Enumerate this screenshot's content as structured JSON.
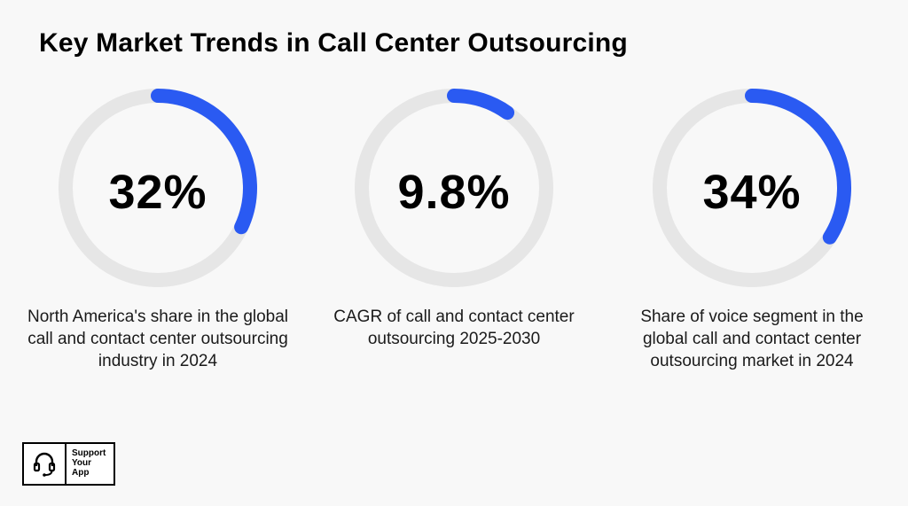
{
  "title": "Key Market Trends in Call Center Outsourcing",
  "colors": {
    "track": "#e6e6e6",
    "arc": "#2a5af2",
    "background": "#f8f8f8"
  },
  "chart_data": [
    {
      "type": "pie",
      "value": 32,
      "label": "32%",
      "caption": "North America's share in the global call and contact center outsourcing industry in 2024"
    },
    {
      "type": "pie",
      "value": 9.8,
      "label": "9.8%",
      "caption": "CAGR of call and contact center outsourcing 2025-2030"
    },
    {
      "type": "pie",
      "value": 34,
      "label": "34%",
      "caption": "Share of voice segment in the global call and contact center outsourcing market in 2024"
    }
  ],
  "logo": {
    "line1": "Support",
    "line2": "Your",
    "line3": "App",
    "icon": "headset-icon"
  }
}
